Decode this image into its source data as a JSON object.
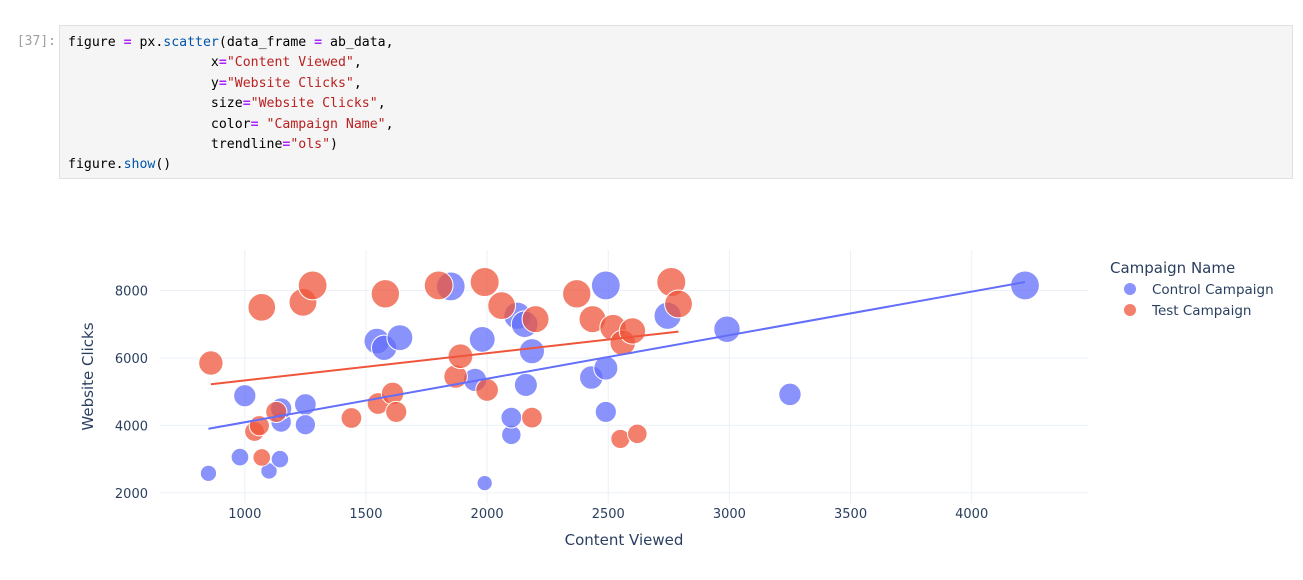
{
  "cell": {
    "prompt": "[37]:",
    "code": {
      "line1": {
        "a": "figure ",
        "b": "=",
        "c": " px.",
        "d": "scatter",
        "e": "(data_frame ",
        "f": "=",
        "g": " ab_data,"
      },
      "line2": {
        "indent": "                  ",
        "a": "x",
        "b": "=",
        "c": "\"Content Viewed\"",
        "d": ","
      },
      "line3": {
        "indent": "                  ",
        "a": "y",
        "b": "=",
        "c": "\"Website Clicks\"",
        "d": ","
      },
      "line4": {
        "indent": "                  ",
        "a": "size",
        "b": "=",
        "c": "\"Website Clicks\"",
        "d": ","
      },
      "line5": {
        "indent": "                  ",
        "a": "color",
        "b": "=",
        "c": " \"Campaign Name\"",
        "d": ","
      },
      "line6": {
        "indent": "                  ",
        "a": "trendline",
        "b": "=",
        "c": "\"ols\"",
        "d": ")"
      },
      "line7": {
        "a": "figure.",
        "b": "show",
        "c": "()"
      }
    }
  },
  "chart_data": {
    "type": "scatter",
    "title": "",
    "xlabel": "Content Viewed",
    "ylabel": "Website Clicks",
    "xlim": [
      650,
      4480
    ],
    "ylim": [
      1700,
      9200
    ],
    "xticks": [
      1000,
      1500,
      2000,
      2500,
      3000,
      3500,
      4000
    ],
    "yticks": [
      2000,
      4000,
      6000,
      8000
    ],
    "size_by": "Website Clicks",
    "grid": true,
    "legend_title": "Campaign Name",
    "legend_position": "right",
    "series": [
      {
        "name": "Control Campaign",
        "color": "#636efa",
        "points": [
          [
            850,
            2580
          ],
          [
            980,
            3060
          ],
          [
            1000,
            4880
          ],
          [
            1100,
            2650
          ],
          [
            1145,
            3000
          ],
          [
            1150,
            4100
          ],
          [
            1150,
            4500
          ],
          [
            1250,
            4620
          ],
          [
            1250,
            4020
          ],
          [
            1545,
            6500
          ],
          [
            1575,
            6300
          ],
          [
            1640,
            6600
          ],
          [
            1850,
            8120
          ],
          [
            1950,
            5350
          ],
          [
            1980,
            6550
          ],
          [
            1990,
            2290
          ],
          [
            2100,
            3720
          ],
          [
            2100,
            4230
          ],
          [
            2125,
            7250
          ],
          [
            2155,
            7000
          ],
          [
            2160,
            5200
          ],
          [
            2185,
            6200
          ],
          [
            2430,
            5420
          ],
          [
            2490,
            8150
          ],
          [
            2490,
            5700
          ],
          [
            2490,
            4400
          ],
          [
            2745,
            7250
          ],
          [
            2990,
            6850
          ],
          [
            3250,
            4920
          ],
          [
            4220,
            8150
          ]
        ],
        "trendline": [
          [
            850,
            3900
          ],
          [
            4220,
            8250
          ]
        ]
      },
      {
        "name": "Test Campaign",
        "color": "#ef553b",
        "points": [
          [
            860,
            5850
          ],
          [
            1040,
            3820
          ],
          [
            1060,
            3990
          ],
          [
            1070,
            3050
          ],
          [
            1070,
            7500
          ],
          [
            1130,
            4400
          ],
          [
            1240,
            7650
          ],
          [
            1280,
            8150
          ],
          [
            1440,
            4220
          ],
          [
            1550,
            4650
          ],
          [
            1580,
            7900
          ],
          [
            1610,
            4950
          ],
          [
            1625,
            4400
          ],
          [
            1800,
            8150
          ],
          [
            1870,
            5450
          ],
          [
            1890,
            6050
          ],
          [
            1990,
            8250
          ],
          [
            2000,
            5050
          ],
          [
            2060,
            7550
          ],
          [
            2185,
            4230
          ],
          [
            2200,
            7150
          ],
          [
            2370,
            7900
          ],
          [
            2435,
            7150
          ],
          [
            2520,
            6900
          ],
          [
            2550,
            3600
          ],
          [
            2560,
            6450
          ],
          [
            2600,
            6800
          ],
          [
            2620,
            3750
          ],
          [
            2760,
            8250
          ],
          [
            2790,
            7600
          ]
        ],
        "trendline": [
          [
            860,
            5220
          ],
          [
            2790,
            6780
          ]
        ]
      }
    ]
  }
}
